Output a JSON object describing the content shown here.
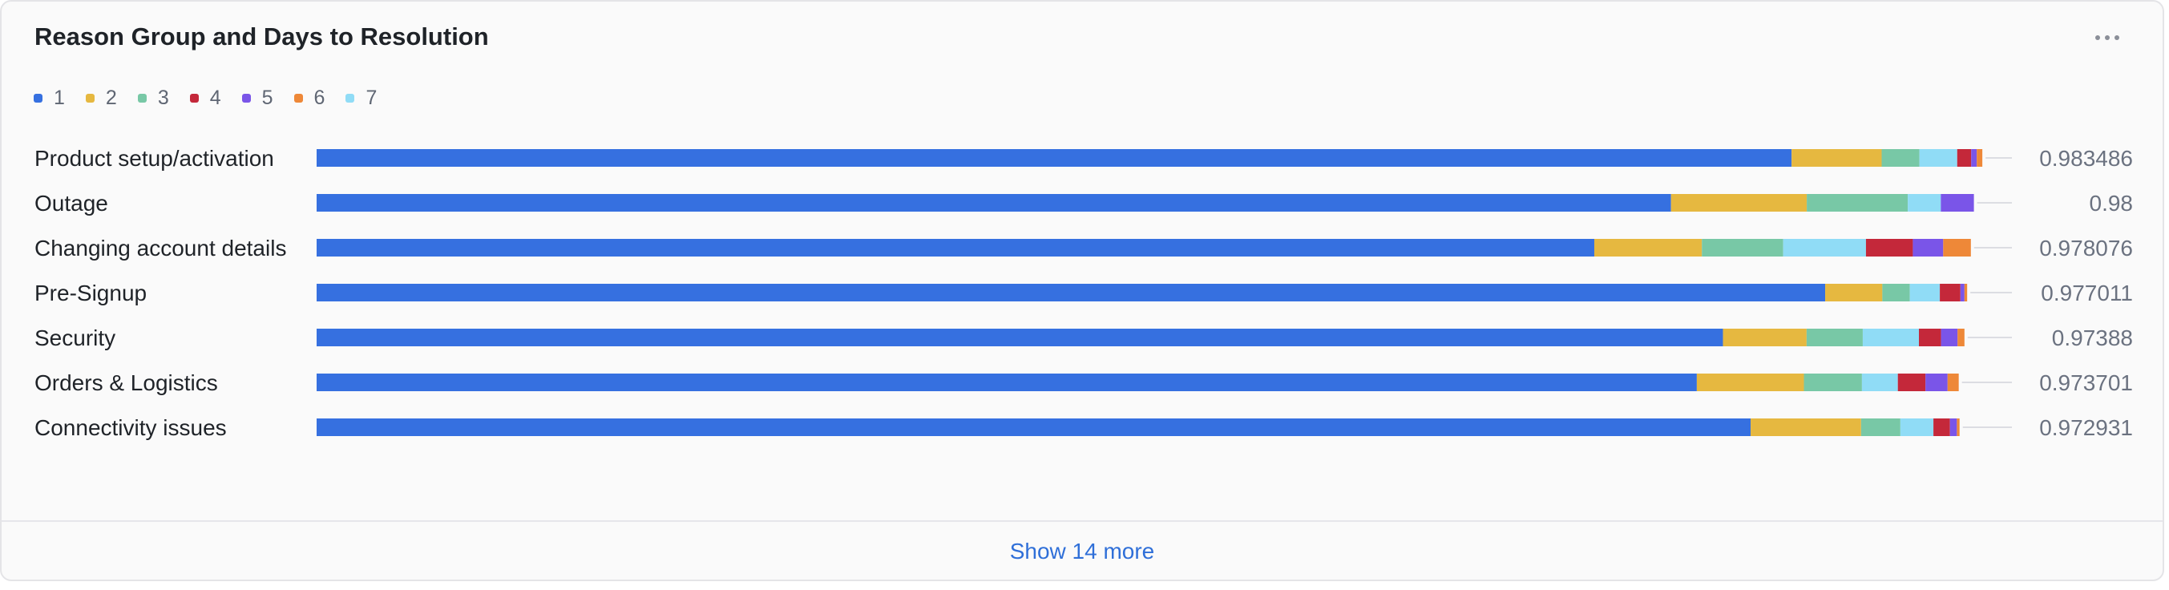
{
  "widget": {
    "title": "Reason Group and Days to Resolution",
    "more_icon": "more-horizontal-icon",
    "show_more_label": "Show 14 more"
  },
  "legend": [
    {
      "label": "1",
      "color": "#3670e0"
    },
    {
      "label": "2",
      "color": "#e6b840"
    },
    {
      "label": "3",
      "color": "#78c8a6"
    },
    {
      "label": "4",
      "color": "#c4283a"
    },
    {
      "label": "5",
      "color": "#7a55e8"
    },
    {
      "label": "6",
      "color": "#ee8838"
    },
    {
      "label": "7",
      "color": "#90dcf6"
    }
  ],
  "chart_data": {
    "type": "bar",
    "orientation": "horizontal",
    "stacked": true,
    "series_order": [
      "1",
      "2",
      "7",
      "3",
      "4",
      "5",
      "6"
    ],
    "categories": [
      "Product setup/activation",
      "Outage",
      "Changing account details",
      "Pre-Signup",
      "Security",
      "Orders & Logistics",
      "Connectivity issues"
    ],
    "totals": [
      "0.983486",
      "0.98",
      "0.978076",
      "0.977011",
      "0.97388",
      "0.973701",
      "0.972931"
    ],
    "series": [
      {
        "name": "1",
        "color": "#3670e0",
        "values": [
          0.8746,
          0.8031,
          0.7576,
          0.8945,
          0.8339,
          0.8184,
          0.8503
        ]
      },
      {
        "name": "2",
        "color": "#e6b840",
        "values": [
          0.0534,
          0.0805,
          0.0638,
          0.0339,
          0.0496,
          0.0635,
          0.0655
        ]
      },
      {
        "name": "3",
        "color": "#78c8a6",
        "values": [
          0.0224,
          0.0599,
          0.0482,
          0.0163,
          0.0333,
          0.0344,
          0.0233
        ]
      },
      {
        "name": "7",
        "color": "#90dcf6",
        "values": [
          0.0224,
          0.0196,
          0.0491,
          0.0178,
          0.0333,
          0.0213,
          0.0196
        ]
      },
      {
        "name": "4",
        "color": "#c4283a",
        "values": [
          0.0083,
          0.0,
          0.0278,
          0.0122,
          0.0131,
          0.0164,
          0.0098
        ]
      },
      {
        "name": "5",
        "color": "#7a55e8",
        "values": [
          0.0033,
          0.0196,
          0.018,
          0.0024,
          0.0098,
          0.0131,
          0.0041
        ]
      },
      {
        "name": "6",
        "color": "#ee8838",
        "values": [
          0.0033,
          0.0,
          0.0164,
          0.0016,
          0.0041,
          0.0066,
          0.0016
        ]
      }
    ]
  }
}
